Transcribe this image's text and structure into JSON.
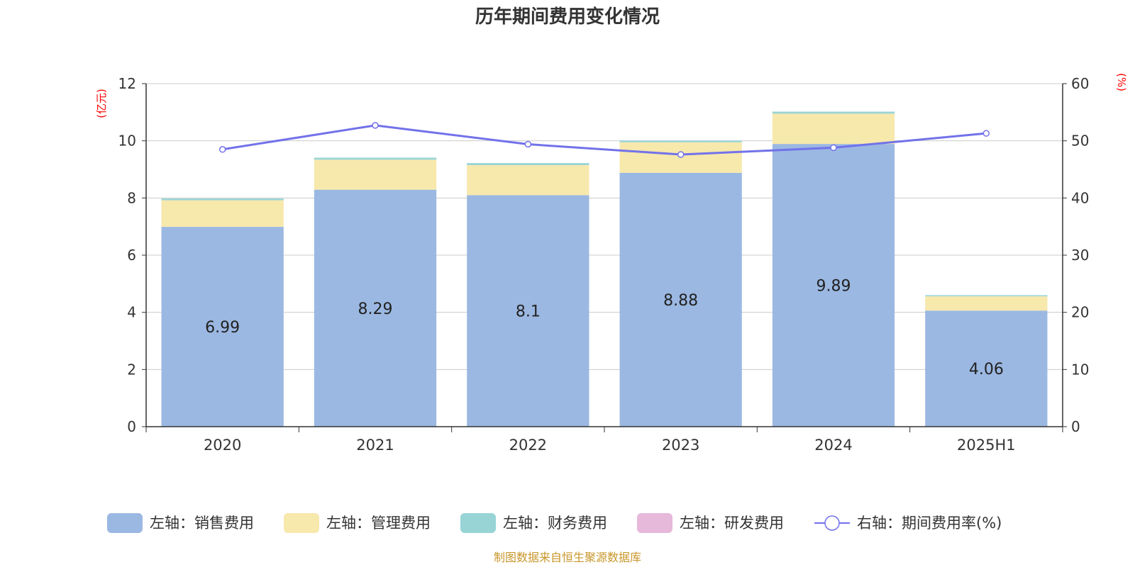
{
  "chart_data": {
    "type": "bar",
    "title": "历年期间费用变化情况",
    "categories": [
      "2020",
      "2021",
      "2022",
      "2023",
      "2024",
      "2025H1"
    ],
    "left_axis": {
      "unit": "(亿元)",
      "min": 0,
      "max": 12,
      "ticks": [
        "0",
        "2",
        "4",
        "6",
        "8",
        "10",
        "12"
      ]
    },
    "right_axis": {
      "unit": "(%)",
      "min": 0,
      "max": 60,
      "ticks": [
        "0",
        "10",
        "20",
        "30",
        "40",
        "50",
        "60"
      ]
    },
    "stacked_series": [
      {
        "name": "左轴：销售费用",
        "color": "#9bb8e2",
        "values": [
          6.99,
          8.29,
          8.1,
          8.88,
          9.89,
          4.06
        ],
        "labels": [
          "6.99",
          "8.29",
          "8.1",
          "8.88",
          "9.89",
          "4.06"
        ]
      },
      {
        "name": "左轴：管理费用",
        "color": "#f7e8ac",
        "values": [
          0.93,
          1.05,
          1.05,
          1.07,
          1.06,
          0.5
        ]
      },
      {
        "name": "左轴：财务费用",
        "color": "#98d4d6",
        "values": [
          0.06,
          0.07,
          0.07,
          0.06,
          0.07,
          0.04
        ]
      },
      {
        "name": "左轴：研发费用",
        "color": "#e6b8da",
        "values": [
          0,
          0,
          0,
          0,
          0,
          0
        ]
      }
    ],
    "line_series": {
      "name": "右轴：期间费用率(%)",
      "color": "#7272ea",
      "values": [
        48.5,
        52.7,
        49.4,
        47.6,
        48.8,
        51.3
      ]
    },
    "grid": true,
    "legend_position": "bottom"
  },
  "source": "制图数据来自恒生聚源数据库"
}
